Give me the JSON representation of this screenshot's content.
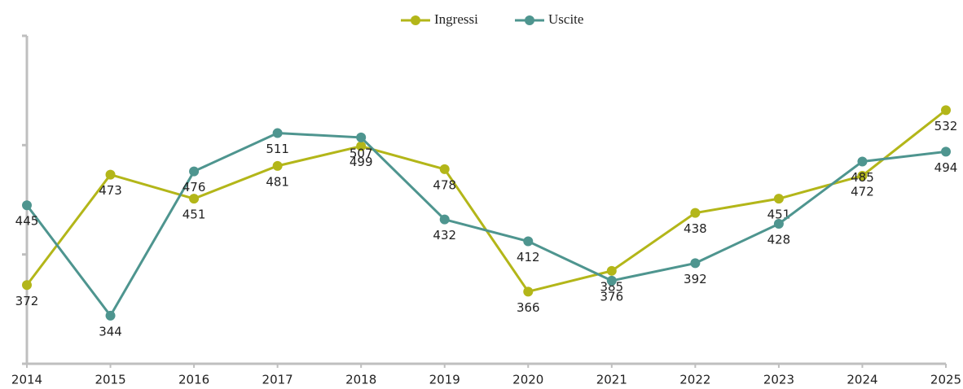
{
  "chart_data": {
    "type": "line",
    "categories": [
      "2014",
      "2015",
      "2016",
      "2017",
      "2018",
      "2019",
      "2020",
      "2021",
      "2022",
      "2023",
      "2024",
      "2025"
    ],
    "series": [
      {
        "name": "Ingressi",
        "color": "#b3b619",
        "values": [
          372,
          473,
          451,
          481,
          499,
          478,
          366,
          385,
          438,
          451,
          472,
          532
        ]
      },
      {
        "name": "Uscite",
        "color": "#4e958f",
        "values": [
          445,
          344,
          476,
          511,
          507,
          432,
          412,
          376,
          392,
          428,
          485,
          494
        ]
      }
    ],
    "ylim": [
      300,
      600
    ],
    "yticks": [
      300,
      400,
      500,
      600
    ],
    "legend": "top"
  }
}
